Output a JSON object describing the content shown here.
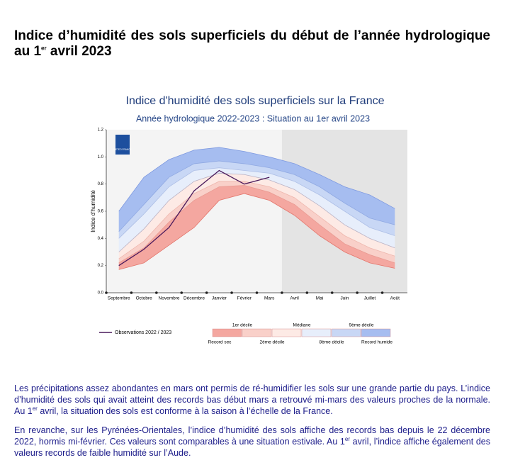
{
  "document": {
    "title": [
      "Indice d’humidité des sols superficiels du début de l’année hydrologique au 1",
      "er",
      " avril 2023"
    ],
    "paragraphs": [
      [
        "Les précipitations assez abondantes en mars ont permis de ré-humidifier les sols sur une grande partie du pays. L’indice d’humidité des sols qui avait atteint des records bas début mars a retrouvé mi-mars des valeurs proches de la normale. Au 1",
        "er",
        " avril, la situation des sols est conforme à la saison à l’échelle de la France."
      ],
      [
        "En revanche, sur les Pyrénées-Orientales, l’indice d’humidité des sols affiche des records bas depuis le 22 décembre 2022, hormis mi-février. Ces valeurs sont comparables à une situation estivale. Au 1",
        "er",
        " avril, l’indice affiche également des valeurs records de faible humidité sur l’Aude."
      ]
    ]
  },
  "chart_data": {
    "type": "band",
    "title": "Indice d'humidité des sols superficiels sur la France",
    "subtitle": "Année hydrologique 2022-2023 : Situation au 1er avril 2023",
    "logo": "METEO FRANCE",
    "ylabel": "Indice d'humidité",
    "categories": [
      "Septembre",
      "Octobre",
      "Novembre",
      "Décembre",
      "Janvier",
      "Février",
      "Mars",
      "Avril",
      "Mai",
      "Juin",
      "Juillet",
      "Août"
    ],
    "ylim": [
      0,
      1.2
    ],
    "yticks": [
      {
        "value": 0,
        "label": "0.0"
      },
      0.2,
      0.4,
      0.6,
      0.8,
      {
        "value": 1,
        "label": "1.0"
      },
      1.2
    ],
    "band_colors": [
      "#f4a7a0",
      "#f9d0c9",
      "#fdeae5",
      "#e7eefb",
      "#c8d7f5",
      "#a6bdf0"
    ],
    "series": [
      {
        "name": "Record sec",
        "color": "#e3766c",
        "values": [
          0.17,
          0.22,
          0.35,
          0.48,
          0.68,
          0.73,
          0.68,
          0.57,
          0.42,
          0.3,
          0.22,
          0.18
        ]
      },
      {
        "name": "1er décile",
        "color": "#e99a92",
        "values": [
          0.22,
          0.33,
          0.52,
          0.68,
          0.78,
          0.79,
          0.74,
          0.65,
          0.5,
          0.36,
          0.28,
          0.22
        ]
      },
      {
        "name": "2ème décile",
        "color": "#eeb7ae",
        "values": [
          0.25,
          0.38,
          0.58,
          0.73,
          0.82,
          0.82,
          0.78,
          0.7,
          0.56,
          0.42,
          0.33,
          0.27
        ]
      },
      {
        "name": "Médiane",
        "color": "#b9b2c4",
        "values": [
          0.3,
          0.47,
          0.68,
          0.82,
          0.88,
          0.87,
          0.83,
          0.76,
          0.64,
          0.5,
          0.4,
          0.33
        ]
      },
      {
        "name": "8ème décile",
        "color": "#aebfe6",
        "values": [
          0.4,
          0.58,
          0.78,
          0.9,
          0.92,
          0.9,
          0.88,
          0.82,
          0.72,
          0.6,
          0.48,
          0.42
        ]
      },
      {
        "name": "9ème décile",
        "color": "#90a9e2",
        "values": [
          0.45,
          0.65,
          0.85,
          0.95,
          0.97,
          0.95,
          0.92,
          0.87,
          0.78,
          0.66,
          0.55,
          0.5
        ]
      },
      {
        "name": "Record humide",
        "color": "#7f9ae0",
        "values": [
          0.6,
          0.85,
          0.98,
          1.05,
          1.07,
          1.04,
          1.0,
          0.95,
          0.87,
          0.78,
          0.72,
          0.62
        ]
      }
    ],
    "observations": {
      "name": "Observations 2022 / 2023",
      "color": "#4a1a5c",
      "values": [
        0.2,
        0.32,
        0.48,
        0.75,
        0.9,
        0.8,
        0.85,
        null,
        null,
        null,
        null,
        null
      ]
    }
  }
}
